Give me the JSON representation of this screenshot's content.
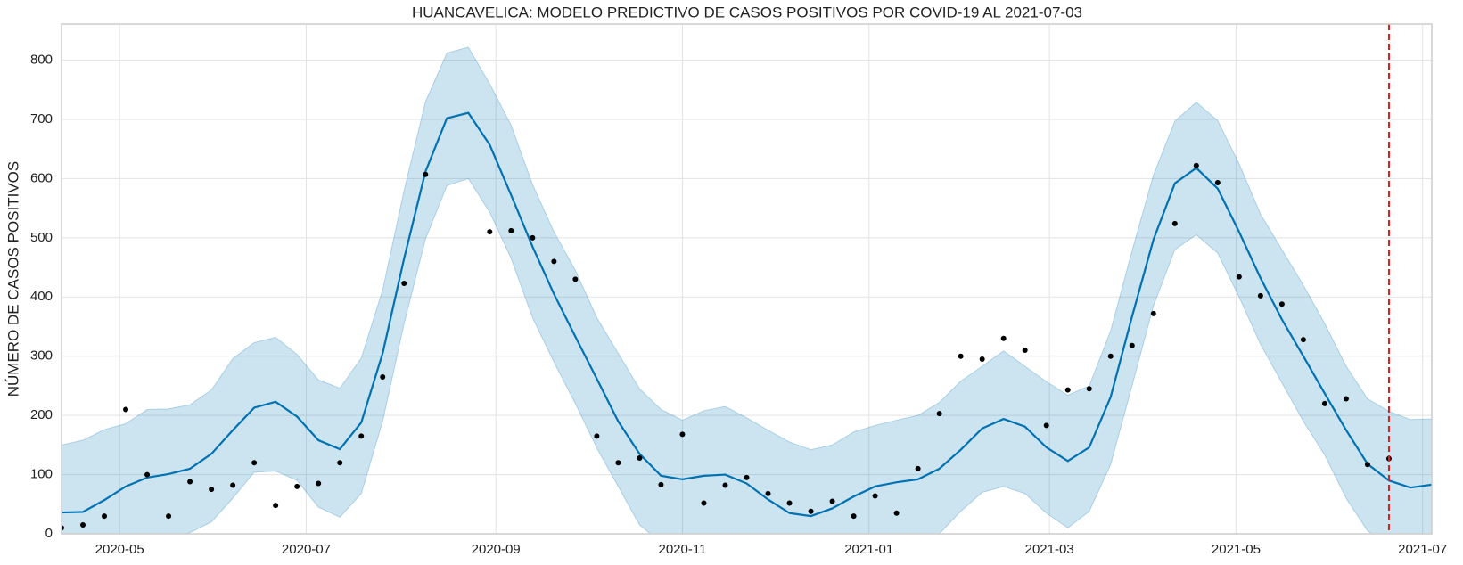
{
  "chart_data": {
    "type": "line",
    "title": "HUANCAVELICA: MODELO PREDICTIVO DE CASOS POSITIVOS POR COVID-19 AL 2021-07-03",
    "y_label": "NÚMERO DE CASOS POSITIVOS",
    "x": [
      "2020-04-12",
      "2020-04-19",
      "2020-04-26",
      "2020-05-03",
      "2020-05-10",
      "2020-05-17",
      "2020-05-24",
      "2020-05-31",
      "2020-06-07",
      "2020-06-14",
      "2020-06-21",
      "2020-06-28",
      "2020-07-05",
      "2020-07-12",
      "2020-07-19",
      "2020-07-26",
      "2020-08-02",
      "2020-08-09",
      "2020-08-16",
      "2020-08-23",
      "2020-08-30",
      "2020-09-06",
      "2020-09-13",
      "2020-09-20",
      "2020-09-27",
      "2020-10-04",
      "2020-10-11",
      "2020-10-18",
      "2020-10-25",
      "2020-11-01",
      "2020-11-08",
      "2020-11-15",
      "2020-11-22",
      "2020-11-29",
      "2020-12-06",
      "2020-12-13",
      "2020-12-20",
      "2020-12-27",
      "2021-01-03",
      "2021-01-10",
      "2021-01-17",
      "2021-01-24",
      "2021-01-31",
      "2021-02-07",
      "2021-02-14",
      "2021-02-21",
      "2021-02-28",
      "2021-03-07",
      "2021-03-14",
      "2021-03-21",
      "2021-03-28",
      "2021-04-04",
      "2021-04-11",
      "2021-04-18",
      "2021-04-25",
      "2021-05-02",
      "2021-05-09",
      "2021-05-16",
      "2021-05-23",
      "2021-05-30",
      "2021-06-06",
      "2021-06-13",
      "2021-06-20",
      "2021-06-27",
      "2021-07-04"
    ],
    "xlim": [
      "2020-04-12",
      "2021-07-04"
    ],
    "xticks": [
      {
        "value": "2020-05-01",
        "label": "2020-05"
      },
      {
        "value": "2020-07-01",
        "label": "2020-07"
      },
      {
        "value": "2020-09-01",
        "label": "2020-09"
      },
      {
        "value": "2020-11-01",
        "label": "2020-11"
      },
      {
        "value": "2021-01-01",
        "label": "2021-01"
      },
      {
        "value": "2021-03-01",
        "label": "2021-03"
      },
      {
        "value": "2021-05-01",
        "label": "2021-05"
      },
      {
        "value": "2021-07-01",
        "label": "2021-07"
      }
    ],
    "ylim": [
      0,
      861
    ],
    "yticks": [
      0,
      100,
      200,
      300,
      400,
      500,
      600,
      700,
      800
    ],
    "grid": true,
    "series": [
      {
        "marker": "dot",
        "color": "#000000",
        "values": [
          10,
          15,
          30,
          210,
          100,
          30,
          88,
          75,
          82,
          120,
          48,
          80,
          85,
          120,
          165,
          265,
          423,
          607,
          null,
          null,
          510,
          512,
          500,
          460,
          430,
          165,
          120,
          128,
          83,
          168,
          52,
          82,
          95,
          68,
          52,
          38,
          55,
          30,
          64,
          35,
          110,
          203,
          300,
          295,
          330,
          310,
          183,
          243,
          245,
          300,
          318,
          372,
          524,
          622,
          593,
          434,
          402,
          388,
          328,
          220,
          228,
          117,
          127,
          null,
          null
        ]
      },
      {
        "marker": "line",
        "color": "#0072b2",
        "band_color": "#0072b2",
        "values": [
          36,
          37,
          57,
          80,
          95,
          101,
          110,
          135,
          175,
          213,
          223,
          198,
          158,
          143,
          188,
          305,
          465,
          612,
          702,
          711,
          657,
          572,
          485,
          405,
          333,
          262,
          190,
          135,
          98,
          92,
          98,
          100,
          85,
          58,
          35,
          30,
          43,
          63,
          80,
          87,
          92,
          110,
          142,
          178,
          194,
          181,
          146,
          123,
          146,
          231,
          367,
          497,
          592,
          618,
          583,
          510,
          432,
          362,
          300,
          237,
          175,
          118,
          90,
          78,
          83
        ],
        "lower": [
          -90,
          -80,
          -60,
          -40,
          -20,
          -10,
          2,
          20,
          60,
          104,
          106,
          90,
          45,
          28,
          68,
          190,
          355,
          498,
          588,
          600,
          543,
          465,
          365,
          290,
          220,
          145,
          80,
          15,
          -15,
          -20,
          -10,
          -5,
          -20,
          -45,
          -60,
          -70,
          -55,
          -40,
          -25,
          -15,
          -5,
          0,
          38,
          70,
          80,
          68,
          35,
          10,
          38,
          117,
          250,
          385,
          480,
          505,
          474,
          400,
          320,
          255,
          190,
          133,
          60,
          5,
          -20,
          -30,
          -25
        ],
        "upper": [
          150,
          158,
          176,
          186,
          210,
          211,
          218,
          243,
          296,
          323,
          332,
          303,
          260,
          246,
          297,
          412,
          580,
          730,
          812,
          822,
          760,
          690,
          590,
          510,
          445,
          365,
          305,
          245,
          210,
          192,
          208,
          215,
          196,
          175,
          155,
          142,
          150,
          172,
          183,
          192,
          200,
          222,
          258,
          283,
          309,
          283,
          257,
          234,
          250,
          343,
          478,
          606,
          697,
          729,
          698,
          625,
          540,
          480,
          420,
          355,
          283,
          228,
          207,
          193,
          194
        ]
      }
    ],
    "vline": {
      "x": "2021-06-20",
      "color": "#e41a1c",
      "style": "dashed"
    }
  }
}
